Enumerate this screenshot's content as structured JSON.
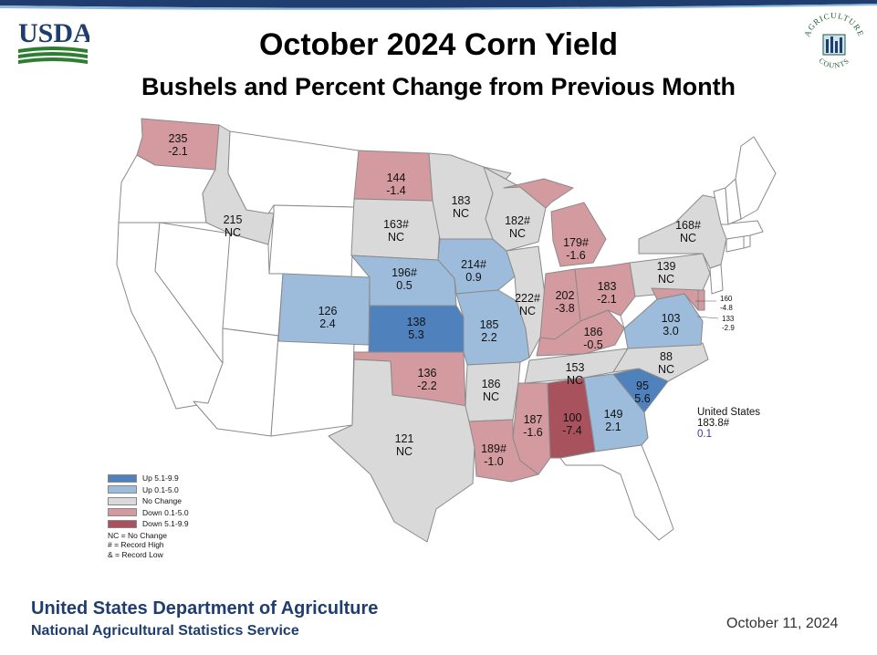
{
  "header": {
    "title": "October 2024 Corn Yield",
    "subtitle": "Bushels and Percent Change from Previous Month"
  },
  "logos": {
    "usda": "USDA",
    "nass_top": "AGRICULTURE",
    "nass_bottom": "COUNTS"
  },
  "colors": {
    "up_high": "#4f81bd",
    "up_low": "#9dbcdc",
    "no_change": "#d9d9d9",
    "down_low": "#d39a9f",
    "down_high": "#a8525d",
    "no_data": "#ffffff",
    "usda_blue": "#1f3d6e",
    "usda_green": "#2e7d32"
  },
  "map": {
    "states": [
      {
        "id": "WA",
        "name": "Washington",
        "cat": "down_low",
        "yield": "235",
        "change": "-2.1"
      },
      {
        "id": "OR",
        "name": "Oregon",
        "cat": "no_data",
        "yield": "",
        "change": ""
      },
      {
        "id": "CA",
        "name": "California",
        "cat": "no_data",
        "yield": "",
        "change": ""
      },
      {
        "id": "NV",
        "name": "Nevada",
        "cat": "no_data",
        "yield": "",
        "change": ""
      },
      {
        "id": "ID",
        "name": "Idaho",
        "cat": "no_change",
        "yield": "215",
        "change": "NC"
      },
      {
        "id": "MT",
        "name": "Montana",
        "cat": "no_data",
        "yield": "",
        "change": ""
      },
      {
        "id": "WY",
        "name": "Wyoming",
        "cat": "no_data",
        "yield": "",
        "change": ""
      },
      {
        "id": "UT",
        "name": "Utah",
        "cat": "no_data",
        "yield": "",
        "change": ""
      },
      {
        "id": "AZ",
        "name": "Arizona",
        "cat": "no_data",
        "yield": "",
        "change": ""
      },
      {
        "id": "NM",
        "name": "New Mexico",
        "cat": "no_data",
        "yield": "",
        "change": ""
      },
      {
        "id": "CO",
        "name": "Colorado",
        "cat": "up_low",
        "yield": "126",
        "change": "2.4"
      },
      {
        "id": "ND",
        "name": "North Dakota",
        "cat": "down_low",
        "yield": "144",
        "change": "-1.4"
      },
      {
        "id": "SD",
        "name": "South Dakota",
        "cat": "no_change",
        "yield": "163#",
        "change": "NC"
      },
      {
        "id": "NE",
        "name": "Nebraska",
        "cat": "up_low",
        "yield": "196#",
        "change": "0.5"
      },
      {
        "id": "KS",
        "name": "Kansas",
        "cat": "up_high",
        "yield": "138",
        "change": "5.3"
      },
      {
        "id": "OK",
        "name": "Oklahoma",
        "cat": "down_low",
        "yield": "136",
        "change": "-2.2"
      },
      {
        "id": "TX",
        "name": "Texas",
        "cat": "no_change",
        "yield": "121",
        "change": "NC"
      },
      {
        "id": "MN",
        "name": "Minnesota",
        "cat": "no_change",
        "yield": "183",
        "change": "NC"
      },
      {
        "id": "IA",
        "name": "Iowa",
        "cat": "up_low",
        "yield": "214#",
        "change": "0.9"
      },
      {
        "id": "MO",
        "name": "Missouri",
        "cat": "up_low",
        "yield": "185",
        "change": "2.2"
      },
      {
        "id": "AR",
        "name": "Arkansas",
        "cat": "no_change",
        "yield": "186",
        "change": "NC"
      },
      {
        "id": "LA",
        "name": "Louisiana",
        "cat": "down_low",
        "yield": "189#",
        "change": "-1.0"
      },
      {
        "id": "WI",
        "name": "Wisconsin",
        "cat": "no_change",
        "yield": "182#",
        "change": "NC"
      },
      {
        "id": "IL",
        "name": "Illinois",
        "cat": "no_change",
        "yield": "222#",
        "change": "NC"
      },
      {
        "id": "MS",
        "name": "Mississippi",
        "cat": "down_low",
        "yield": "187",
        "change": "-1.6"
      },
      {
        "id": "MI",
        "name": "Michigan",
        "cat": "down_low",
        "yield": "179#",
        "change": "-1.6"
      },
      {
        "id": "IN",
        "name": "Indiana",
        "cat": "down_low",
        "yield": "202",
        "change": "-3.8"
      },
      {
        "id": "KY",
        "name": "Kentucky",
        "cat": "down_low",
        "yield": "186",
        "change": "-0.5"
      },
      {
        "id": "TN",
        "name": "Tennessee",
        "cat": "no_change",
        "yield": "153",
        "change": "NC"
      },
      {
        "id": "AL",
        "name": "Alabama",
        "cat": "down_high",
        "yield": "100",
        "change": "-7.4"
      },
      {
        "id": "OH",
        "name": "Ohio",
        "cat": "down_low",
        "yield": "183",
        "change": "-2.1"
      },
      {
        "id": "GA",
        "name": "Georgia",
        "cat": "up_low",
        "yield": "149",
        "change": "2.1"
      },
      {
        "id": "FL",
        "name": "Florida",
        "cat": "no_data",
        "yield": "",
        "change": ""
      },
      {
        "id": "SC",
        "name": "South Carolina",
        "cat": "up_high",
        "yield": "95",
        "change": "5.6"
      },
      {
        "id": "NC",
        "name": "North Carolina",
        "cat": "no_change",
        "yield": "88",
        "change": "NC"
      },
      {
        "id": "VA",
        "name": "Virginia",
        "cat": "up_low",
        "yield": "103",
        "change": "3.0"
      },
      {
        "id": "WV",
        "name": "West Virginia",
        "cat": "no_data",
        "yield": "",
        "change": ""
      },
      {
        "id": "PA",
        "name": "Pennsylvania",
        "cat": "no_change",
        "yield": "139",
        "change": "NC"
      },
      {
        "id": "NY",
        "name": "New York",
        "cat": "no_change",
        "yield": "168#",
        "change": "NC"
      },
      {
        "id": "MD",
        "name": "Maryland",
        "cat": "down_low",
        "yield": "160",
        "change": "-4.8"
      },
      {
        "id": "DE",
        "name": "Delaware",
        "cat": "down_low",
        "yield": "133",
        "change": "-2.9"
      },
      {
        "id": "NJ",
        "name": "New Jersey",
        "cat": "no_data",
        "yield": "",
        "change": ""
      },
      {
        "id": "CT",
        "name": "Connecticut",
        "cat": "no_data",
        "yield": "",
        "change": ""
      },
      {
        "id": "RI",
        "name": "Rhode Island",
        "cat": "no_data",
        "yield": "",
        "change": ""
      },
      {
        "id": "MA",
        "name": "Massachusetts",
        "cat": "no_data",
        "yield": "",
        "change": ""
      },
      {
        "id": "VT",
        "name": "Vermont",
        "cat": "no_data",
        "yield": "",
        "change": ""
      },
      {
        "id": "NH",
        "name": "New Hampshire",
        "cat": "no_data",
        "yield": "",
        "change": ""
      },
      {
        "id": "ME",
        "name": "Maine",
        "cat": "no_data",
        "yield": "",
        "change": ""
      }
    ],
    "us_summary": {
      "label": "United States",
      "yield": "183.8#",
      "change": "0.1"
    }
  },
  "legend": {
    "items": [
      {
        "cat": "up_high",
        "label": "Up 5.1-9.9"
      },
      {
        "cat": "up_low",
        "label": "Up 0.1-5.0"
      },
      {
        "cat": "no_change",
        "label": "No Change"
      },
      {
        "cat": "down_low",
        "label": "Down 0.1-5.0"
      },
      {
        "cat": "down_high",
        "label": "Down 5.1-9.9"
      }
    ],
    "notes": [
      "NC = No Change",
      "# = Record High",
      "& = Record Low"
    ]
  },
  "footer": {
    "org": "United States Department of Agriculture",
    "agency": "National Agricultural Statistics Service",
    "date": "October 11, 2024"
  }
}
